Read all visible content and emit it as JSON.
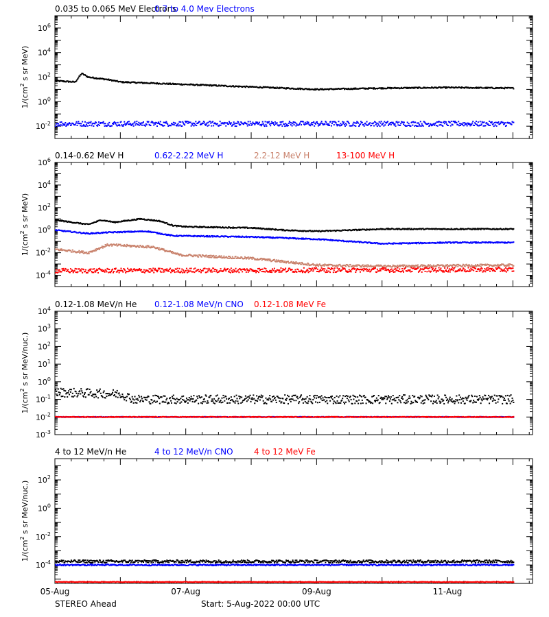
{
  "footer": {
    "spacecraft": "STEREO Ahead",
    "start": "Start:  5-Aug-2022 00:00 UTC",
    "x_ticks": [
      {
        "day": 0,
        "label": "05-Aug"
      },
      {
        "day": 2,
        "label": "07-Aug"
      },
      {
        "day": 4,
        "label": "09-Aug"
      },
      {
        "day": 6,
        "label": "11-Aug"
      }
    ]
  },
  "colors": {
    "black": "#000000",
    "blue": "#0000ff",
    "tan": "#c8806a",
    "red": "#ff0000"
  },
  "chart_data": [
    {
      "type": "scatter",
      "ylabel_parts": [
        "1/(cm",
        "2",
        " s sr MeV)"
      ],
      "ylog_range": [
        -3,
        7
      ],
      "y_ticks": [
        -2,
        0,
        2,
        4,
        6
      ],
      "tick_style": "power",
      "series": [
        {
          "name": "0.035 to 0.065 MeV Electrons",
          "color": "#000000",
          "x_day": [
            0,
            0.3,
            0.4,
            0.5,
            0.8,
            1.0,
            1.5,
            2.0,
            3.0,
            3.5,
            4.0,
            5.0,
            6.0,
            7.0
          ],
          "log_y": [
            1.7,
            1.6,
            2.3,
            2.0,
            1.8,
            1.6,
            1.5,
            1.4,
            1.2,
            1.1,
            1.0,
            1.1,
            1.15,
            1.1
          ],
          "scatter": 0.05
        },
        {
          "name": "0.7 to 4.0 Mev Electrons",
          "color": "#0000ff",
          "x_day": [
            0,
            7
          ],
          "log_y": [
            -1.8,
            -1.8
          ],
          "scatter": 0.2
        }
      ]
    },
    {
      "type": "scatter",
      "ylabel_parts": [
        "1/(cm",
        "2",
        " s sr MeV)"
      ],
      "ylog_range": [
        -5,
        6
      ],
      "y_ticks": [
        -4,
        -2,
        0,
        2,
        4,
        6
      ],
      "tick_style": "power",
      "series": [
        {
          "name": "0.14-0.62 MeV H",
          "color": "#000000",
          "x_day": [
            0,
            0.5,
            0.7,
            0.9,
            1.3,
            1.6,
            1.8,
            2.0,
            3.0,
            3.5,
            4.0,
            5.0,
            6.0,
            7.0
          ],
          "log_y": [
            0.9,
            0.5,
            0.9,
            0.7,
            1.0,
            0.8,
            0.4,
            0.3,
            0.2,
            0.0,
            -0.1,
            0.1,
            0.1,
            0.1
          ],
          "scatter": 0.05
        },
        {
          "name": "0.62-2.22 MeV H",
          "color": "#0000ff",
          "x_day": [
            0,
            0.5,
            0.8,
            1.4,
            1.8,
            3.0,
            4.0,
            5.0,
            6.0,
            7.0
          ],
          "log_y": [
            0.0,
            -0.3,
            -0.2,
            -0.1,
            -0.5,
            -0.6,
            -0.8,
            -1.2,
            -1.1,
            -1.1
          ],
          "scatter": 0.05
        },
        {
          "name": "2.2-12 MeV H",
          "color": "#c8806a",
          "x_day": [
            0,
            0.5,
            0.8,
            1.5,
            1.9,
            3.0,
            3.5,
            4.0,
            5.0,
            7.0
          ],
          "log_y": [
            -1.7,
            -2.0,
            -1.3,
            -1.5,
            -2.2,
            -2.5,
            -2.8,
            -3.1,
            -3.2,
            -3.1
          ],
          "scatter": 0.1
        },
        {
          "name": "13-100 MeV H",
          "color": "#ff0000",
          "x_day": [
            0,
            7
          ],
          "log_y": [
            -3.6,
            -3.5
          ],
          "scatter": 0.2
        }
      ]
    },
    {
      "type": "scatter",
      "ylabel_parts": [
        "1/(cm",
        "2",
        " s sr MeV/nuc.)"
      ],
      "ylog_range": [
        -3,
        4
      ],
      "y_ticks": [
        -3,
        -2,
        -1,
        0,
        1,
        2,
        3,
        4
      ],
      "tick_style": "power",
      "series": [
        {
          "name": "0.12-1.08 MeV/n He",
          "color": "#000000",
          "x_day": [
            0,
            1.0,
            1.2,
            7.0
          ],
          "log_y": [
            -0.6,
            -0.7,
            -1.0,
            -1.0
          ],
          "scatter": 0.25
        },
        {
          "name": "0.12-1.08 MeV/n CNO",
          "color": "#0000ff",
          "x_day": [
            0,
            7
          ],
          "log_y": [
            -2.0,
            -2.0
          ],
          "scatter": 0.02
        },
        {
          "name": "0.12-1.08 MeV Fe",
          "color": "#ff0000",
          "x_day": [
            0,
            7
          ],
          "log_y": [
            -2.0,
            -2.0
          ],
          "scatter": 0.02
        }
      ]
    },
    {
      "type": "scatter",
      "ylabel_parts": [
        "1/(cm",
        "2",
        " s sr MeV/nuc.)"
      ],
      "ylog_range": [
        -5.3,
        3.5
      ],
      "y_ticks": [
        -4,
        -2,
        0,
        2
      ],
      "tick_style": "power",
      "series": [
        {
          "name": "4 to 12 MeV/n He",
          "color": "#000000",
          "x_day": [
            0,
            7
          ],
          "log_y": [
            -3.75,
            -3.75
          ],
          "scatter": 0.1
        },
        {
          "name": "4 to 12 MeV/n CNO",
          "color": "#0000ff",
          "x_day": [
            0,
            7
          ],
          "log_y": [
            -4.0,
            -4.0
          ],
          "scatter": 0.05
        },
        {
          "name": "4 to 12 MeV Fe",
          "color": "#ff0000",
          "x_day": [
            0,
            7
          ],
          "log_y": [
            -5.2,
            -5.2
          ],
          "scatter": 0.02
        }
      ]
    }
  ]
}
